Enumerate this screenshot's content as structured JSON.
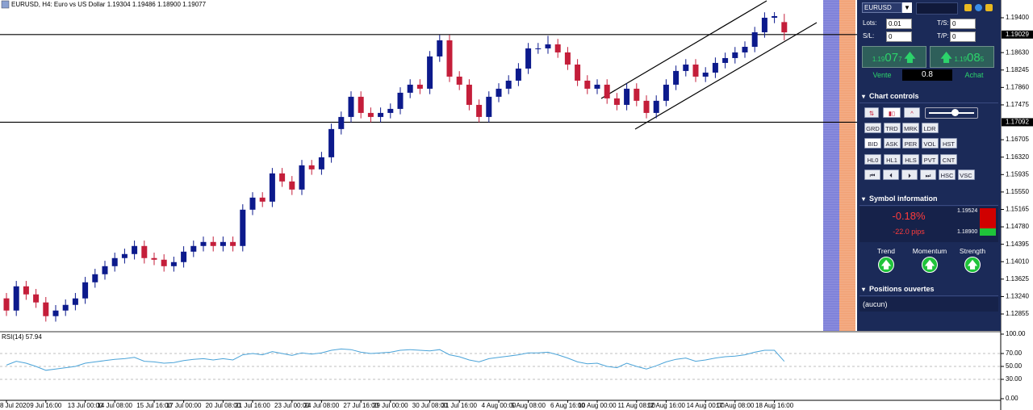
{
  "chart_data": [
    {
      "type": "candlestick",
      "title": "EURUSD, H4: Euro vs US Dollar 1.19304 1.19486 1.18900 1.19077",
      "up_color": "#0c1a8c",
      "down_color": "#c41e3a",
      "categories": [
        "8 Jul 2020",
        null,
        null,
        null,
        "9 Jul 16:00",
        null,
        null,
        null,
        "13 Jul 00:00",
        null,
        null,
        "14 Jul 08:00",
        null,
        null,
        null,
        "15 Jul 16:00",
        null,
        null,
        "17 Jul 00:00",
        null,
        null,
        null,
        "20 Jul 08:00",
        null,
        null,
        "21 Jul 16:00",
        null,
        null,
        null,
        "23 Jul 00:00",
        null,
        null,
        "24 Jul 08:00",
        null,
        null,
        null,
        "27 Jul 16:00",
        null,
        null,
        "29 Jul 00:00",
        null,
        null,
        null,
        "30 Jul 08:00",
        null,
        null,
        "31 Jul 16:00",
        null,
        null,
        null,
        "4 Aug 00:00",
        null,
        null,
        "5 Aug 08:00",
        null,
        null,
        null,
        "6 Aug 16:00",
        null,
        null,
        "10 Aug 00:00",
        null,
        null,
        null,
        "11 Aug 08:00",
        null,
        null,
        "12 Aug 16:00",
        null,
        null,
        null,
        "14 Aug 00:00",
        null,
        null,
        "17 Aug 08:00",
        null,
        null,
        null,
        "18 Aug 16:00",
        null
      ],
      "open": [
        1.132,
        1.12931,
        1.13466,
        1.13288,
        1.1311,
        1.12807,
        1.12931,
        1.13056,
        1.13199,
        1.13555,
        1.13733,
        1.13911,
        1.1409,
        1.14179,
        1.14357,
        1.1409,
        1.14054,
        1.13911,
        1.14001,
        1.14232,
        1.14357,
        1.14446,
        1.14357,
        1.14446,
        1.14357,
        1.15159,
        1.15426,
        1.15337,
        1.15961,
        1.15783,
        1.15604,
        1.16139,
        1.1605,
        1.16317,
        1.16941,
        1.17208,
        1.17654,
        1.17297,
        1.17208,
        1.17297,
        1.17386,
        1.17743,
        1.17921,
        1.17832,
        1.18545,
        1.18901,
        1.18099,
        1.17921,
        1.17475,
        1.17208,
        1.17654,
        1.17832,
        1.1801,
        1.18277,
        1.18723,
        1.18723,
        1.18812,
        1.18634,
        1.18366,
        1.1801,
        1.17832,
        1.17921,
        1.17618,
        1.17475,
        1.17832,
        1.17565,
        1.17297,
        1.17565,
        1.17921,
        1.18224,
        1.18366,
        1.18099,
        1.18188,
        1.18402,
        1.18509,
        1.18634,
        1.18758,
        1.19079,
        1.194,
        1.19304
      ],
      "high": [
        1.1332,
        1.13586,
        1.13586,
        1.13408,
        1.1323,
        1.13051,
        1.13176,
        1.13319,
        1.13675,
        1.13853,
        1.14031,
        1.1421,
        1.14299,
        1.14477,
        1.14477,
        1.1421,
        1.14174,
        1.14121,
        1.14352,
        1.14477,
        1.14566,
        1.14566,
        1.14566,
        1.14566,
        1.15279,
        1.15546,
        1.15546,
        1.16081,
        1.16081,
        1.15903,
        1.16259,
        1.16259,
        1.16437,
        1.17061,
        1.17328,
        1.17774,
        1.17774,
        1.17417,
        1.17417,
        1.17506,
        1.17863,
        1.18041,
        1.18041,
        1.18665,
        1.19021,
        1.19021,
        1.18219,
        1.18041,
        1.17595,
        1.17774,
        1.17952,
        1.1813,
        1.18397,
        1.18843,
        1.18843,
        1.19,
        1.18932,
        1.18754,
        1.18486,
        1.1813,
        1.18041,
        1.18041,
        1.17738,
        1.17952,
        1.17952,
        1.17685,
        1.17685,
        1.18041,
        1.18344,
        1.18486,
        1.18486,
        1.18308,
        1.18522,
        1.18629,
        1.18754,
        1.18878,
        1.19199,
        1.1952,
        1.19524,
        1.19486
      ],
      "low": [
        1.12811,
        1.12811,
        1.13168,
        1.1299,
        1.12687,
        1.12687,
        1.12811,
        1.12936,
        1.13079,
        1.13435,
        1.13613,
        1.13791,
        1.1397,
        1.14059,
        1.1397,
        1.13934,
        1.13791,
        1.13791,
        1.13881,
        1.14112,
        1.14237,
        1.14237,
        1.14237,
        1.14237,
        1.14237,
        1.15039,
        1.15217,
        1.15217,
        1.15663,
        1.15484,
        1.15484,
        1.1593,
        1.1593,
        1.16197,
        1.16821,
        1.17088,
        1.17177,
        1.17088,
        1.17088,
        1.17177,
        1.17266,
        1.17623,
        1.17712,
        1.17712,
        1.18425,
        1.17979,
        1.17801,
        1.17355,
        1.17088,
        1.17088,
        1.17534,
        1.17712,
        1.1789,
        1.18157,
        1.18603,
        1.18603,
        1.18514,
        1.18246,
        1.1789,
        1.17712,
        1.17712,
        1.17498,
        1.17355,
        1.17355,
        1.17445,
        1.17177,
        1.17177,
        1.17445,
        1.17801,
        1.18104,
        1.17979,
        1.17979,
        1.18068,
        1.18282,
        1.18389,
        1.18514,
        1.18638,
        1.18959,
        1.1928,
        1.189
      ],
      "close": [
        1.12931,
        1.13466,
        1.13288,
        1.1311,
        1.12807,
        1.12931,
        1.13056,
        1.13199,
        1.13555,
        1.13733,
        1.13911,
        1.1409,
        1.14179,
        1.14357,
        1.1409,
        1.14054,
        1.13911,
        1.14001,
        1.14232,
        1.14357,
        1.14446,
        1.14357,
        1.14446,
        1.14357,
        1.15159,
        1.15426,
        1.15337,
        1.15961,
        1.15783,
        1.15604,
        1.16139,
        1.1605,
        1.16317,
        1.16941,
        1.17208,
        1.17654,
        1.17297,
        1.17208,
        1.17297,
        1.17386,
        1.17743,
        1.17921,
        1.17832,
        1.18545,
        1.18901,
        1.18099,
        1.17921,
        1.17475,
        1.17208,
        1.17654,
        1.17832,
        1.1801,
        1.18277,
        1.18723,
        1.18723,
        1.18812,
        1.18634,
        1.18366,
        1.1801,
        1.17832,
        1.17921,
        1.17618,
        1.17475,
        1.17832,
        1.17565,
        1.17297,
        1.17565,
        1.17921,
        1.18224,
        1.18366,
        1.18099,
        1.18188,
        1.18402,
        1.18509,
        1.18634,
        1.18758,
        1.19079,
        1.194,
        1.19436,
        1.19077
      ],
      "ylim": [
        1.12481,
        1.19792
      ],
      "yticks": [
        {
          "value": 1.194,
          "label": "1.19400"
        },
        {
          "value": 1.1863,
          "label": "1.18630"
        },
        {
          "value": 1.18245,
          "label": "1.18245"
        },
        {
          "value": 1.1786,
          "label": "1.17860"
        },
        {
          "value": 1.17475,
          "label": "1.17475"
        },
        {
          "value": 1.16705,
          "label": "1.16705"
        },
        {
          "value": 1.1632,
          "label": "1.16320"
        },
        {
          "value": 1.15935,
          "label": "1.15935"
        },
        {
          "value": 1.1555,
          "label": "1.15550"
        },
        {
          "value": 1.15165,
          "label": "1.15165"
        },
        {
          "value": 1.1478,
          "label": "1.14780"
        },
        {
          "value": 1.14395,
          "label": "1.14395"
        },
        {
          "value": 1.1401,
          "label": "1.14010"
        },
        {
          "value": 1.13625,
          "label": "1.13625"
        },
        {
          "value": 1.1324,
          "label": "1.13240"
        },
        {
          "value": 1.12855,
          "label": "1.12855"
        }
      ],
      "hlines": [
        {
          "value": 1.19029,
          "label": "1.19029"
        },
        {
          "value": 1.17092,
          "label": "1.17092"
        }
      ]
    },
    {
      "type": "line",
      "title": "RSI(14) 57.94",
      "color": "#4aa3d8",
      "values": [
        52,
        58,
        55,
        50,
        44,
        46,
        48,
        50,
        55,
        57,
        59,
        61,
        62,
        64,
        58,
        57,
        55,
        56,
        59,
        61,
        62,
        60,
        62,
        60,
        68,
        70,
        68,
        73,
        70,
        67,
        71,
        69,
        71,
        75,
        77,
        76,
        72,
        70,
        71,
        72,
        75,
        76,
        75,
        74,
        76,
        68,
        65,
        60,
        57,
        62,
        64,
        66,
        68,
        71,
        71,
        72,
        68,
        63,
        57,
        54,
        55,
        50,
        48,
        55,
        50,
        46,
        51,
        57,
        61,
        63,
        58,
        60,
        63,
        65,
        66,
        68,
        72,
        75,
        75,
        57.94
      ],
      "ylim": [
        0,
        100
      ],
      "yticks": [
        {
          "value": 100,
          "label": "100.00"
        },
        {
          "value": 70,
          "label": "70.00"
        },
        {
          "value": 50,
          "label": "50.00"
        },
        {
          "value": 30,
          "label": "30.00"
        },
        {
          "value": 0,
          "label": "0.00"
        }
      ]
    }
  ],
  "panel": {
    "symbol": "EURUSD",
    "lots_label": "Lots:",
    "lots": "0.01",
    "ts_label": "T/S:",
    "ts": "0",
    "sl_label": "S/L:",
    "sl": "0",
    "tp_label": "T/P:",
    "tp": "0",
    "sell": {
      "prefix": "1.19",
      "big": "07",
      "suffix": "7",
      "label": "Vente"
    },
    "buy": {
      "prefix": "1.19",
      "big": "08",
      "suffix": "5",
      "label": "Achat"
    },
    "spread": "0.8",
    "chart_controls": {
      "title": "Chart controls",
      "rows": [
        [
          "GRD",
          "TRD",
          "MRK",
          "LDR"
        ],
        [
          "BID",
          "ASK",
          "PER",
          "VOL",
          "HST"
        ],
        [
          "HL0",
          "HL1",
          "HLS",
          "PVT",
          "CNT"
        ],
        [
          "HSC",
          "VSC"
        ]
      ]
    },
    "symbol_info": {
      "title": "Symbol information",
      "change": "-0.18%",
      "pips": "-22.0 pips",
      "high": "1.19524",
      "low": "1.18900",
      "indicators": [
        "Trend",
        "Momentum",
        "Strength"
      ]
    },
    "positions": {
      "title": "Positions ouvertes",
      "content": "(aucun)"
    }
  }
}
